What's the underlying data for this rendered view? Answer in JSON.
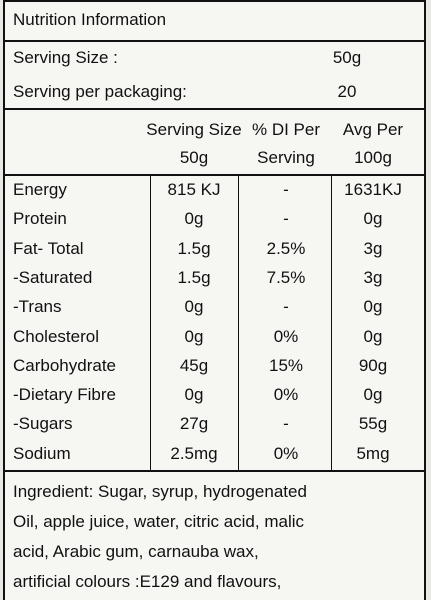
{
  "title": "Nutrition Information",
  "serving": [
    {
      "label": "Serving Size :",
      "value": "50g"
    },
    {
      "label": "Serving per packaging:",
      "value": "20"
    }
  ],
  "table": {
    "header": [
      [
        "Serving Size",
        "50g"
      ],
      [
        "% DI Per",
        "Serving"
      ],
      [
        "Avg Per",
        "100g"
      ]
    ],
    "rows": [
      [
        "Energy",
        "815 KJ",
        "-",
        "1631KJ"
      ],
      [
        "Protein",
        "0g",
        "-",
        "0g"
      ],
      [
        "Fat- Total",
        "1.5g",
        "2.5%",
        "3g"
      ],
      [
        "-Saturated",
        "1.5g",
        "7.5%",
        "3g"
      ],
      [
        "-Trans",
        "0g",
        "-",
        "0g"
      ],
      [
        "Cholesterol",
        "0g",
        "0%",
        "0g"
      ],
      [
        "Carbohydrate",
        "45g",
        "15%",
        "90g"
      ],
      [
        "-Dietary Fibre",
        "0g",
        "0%",
        "0g"
      ],
      [
        "-Sugars",
        "27g",
        "-",
        "55g"
      ],
      [
        "Sodium",
        "2.5mg",
        "0%",
        "5mg"
      ]
    ]
  },
  "ingredients": [
    "Ingredient: Sugar, syrup, hydrogenated",
    "Oil, apple juice, water, citric acid, malic",
    "acid, Arabic gum, carnauba wax,",
    "artificial colours :E129 and flavours,"
  ]
}
